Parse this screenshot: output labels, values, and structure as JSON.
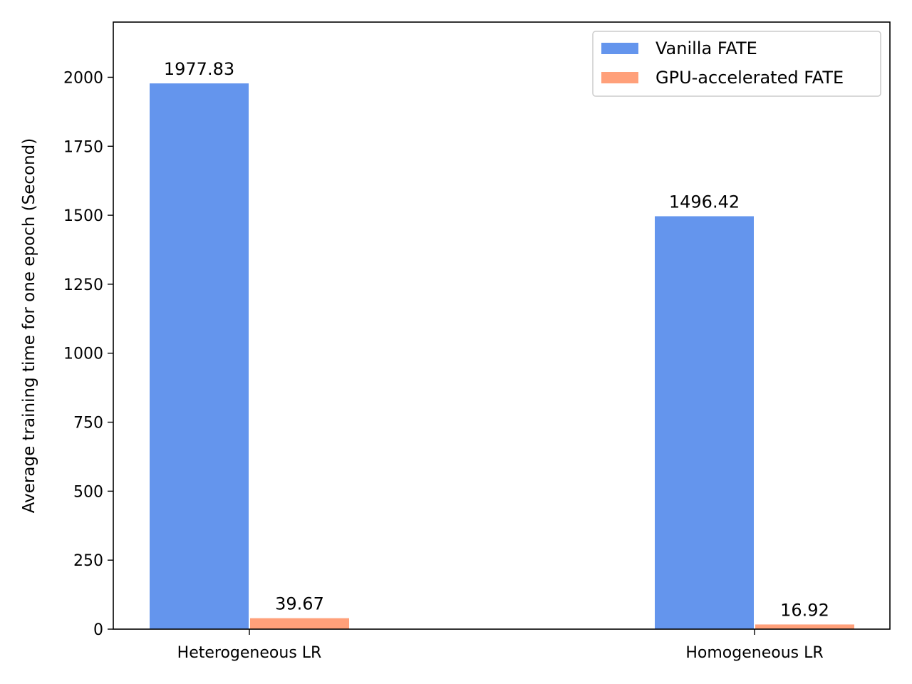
{
  "chart_data": {
    "type": "bar",
    "categories": [
      "Heterogeneous LR",
      "Homogeneous LR"
    ],
    "series": [
      {
        "name": "Vanilla FATE",
        "values": [
          1977.83,
          1496.42
        ],
        "color": "#6495ED",
        "labels": [
          "1977.83",
          "1496.42"
        ]
      },
      {
        "name": "GPU-accelerated FATE",
        "values": [
          39.67,
          16.92
        ],
        "color": "#FFA07A",
        "labels": [
          "39.67",
          "16.92"
        ]
      }
    ],
    "title": "",
    "xlabel": "",
    "ylabel": "Average training time for one epoch (Second)",
    "ylim": [
      0,
      2200
    ],
    "yticks": [
      0,
      250,
      500,
      750,
      1000,
      1250,
      1500,
      1750,
      2000
    ],
    "ytick_labels": [
      "0",
      "250",
      "500",
      "750",
      "1000",
      "1250",
      "1500",
      "1750",
      "2000"
    ],
    "grid": false,
    "legend_position": "top-right"
  }
}
